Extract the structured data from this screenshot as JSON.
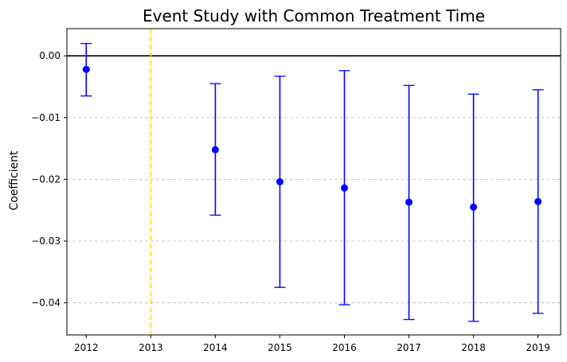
{
  "chart_data": {
    "type": "scatter",
    "title": "Event Study with Common Treatment Time",
    "xlabel": "",
    "ylabel": "Coefficient",
    "x": [
      2012,
      2014,
      2015,
      2016,
      2017,
      2018,
      2019
    ],
    "estimates": [
      -0.0022,
      -0.0152,
      -0.0204,
      -0.0214,
      -0.0237,
      -0.0245,
      -0.0236
    ],
    "ci_lower": [
      -0.0065,
      -0.0258,
      -0.0375,
      -0.0403,
      -0.0427,
      -0.043,
      -0.0417
    ],
    "ci_upper": [
      0.002,
      -0.0045,
      -0.0033,
      -0.0024,
      -0.0048,
      -0.0062,
      -0.0055
    ],
    "xticks": [
      2012,
      2013,
      2014,
      2015,
      2016,
      2017,
      2018,
      2019
    ],
    "xtick_labels": [
      "2012",
      "2013",
      "2014",
      "2015",
      "2016",
      "2017",
      "2018",
      "2019"
    ],
    "yticks": [
      0,
      -0.01,
      -0.02,
      -0.03,
      -0.04
    ],
    "ytick_labels": [
      "0.00",
      "−0.01",
      "−0.02",
      "−0.03",
      "−0.04"
    ],
    "xlim": [
      2011.7,
      2019.35
    ],
    "ylim": [
      -0.0452,
      0.0044
    ],
    "reference_hline": 0,
    "treatment_vline": 2013,
    "grid": "y-dashed",
    "colors": {
      "points": "#0000ff",
      "errorbars": "#0000ff",
      "hline": "#000000",
      "vline": "#ffd700",
      "grid": "#c0c0c0"
    }
  }
}
